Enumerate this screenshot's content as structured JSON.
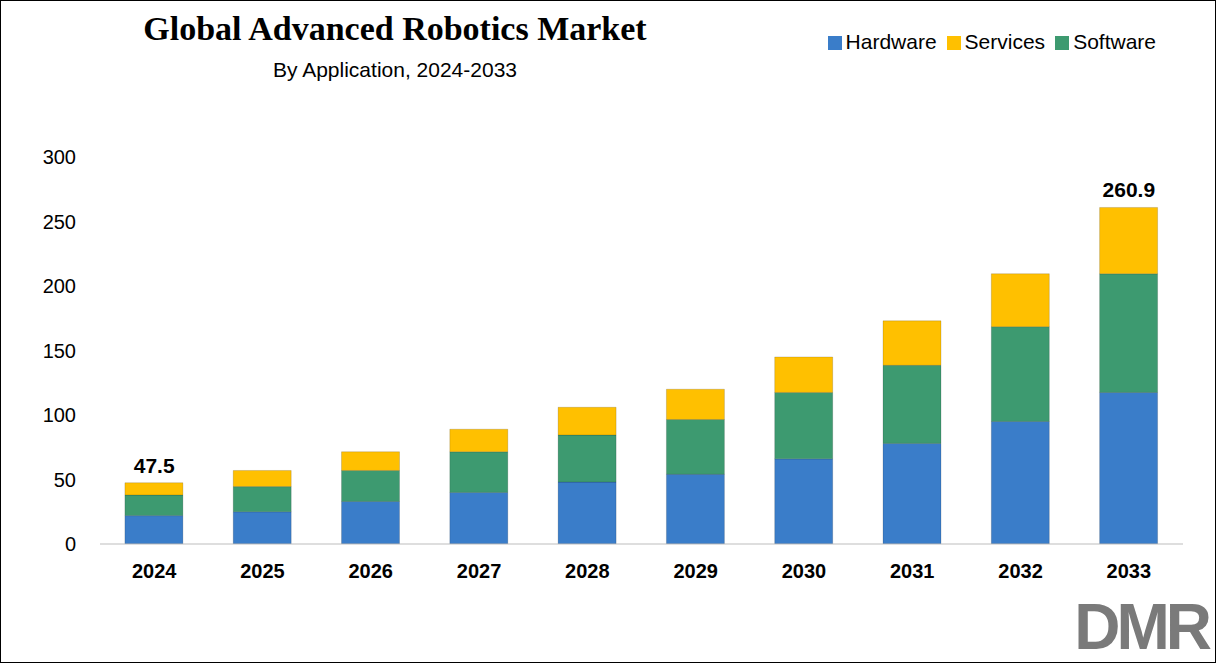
{
  "chart_data": {
    "type": "bar",
    "title": "Global Advanced Robotics Market",
    "subtitle": "By Application, 2024-2033",
    "logo": "DMR",
    "categories": [
      "2024",
      "2025",
      "2026",
      "2027",
      "2028",
      "2029",
      "2030",
      "2031",
      "2032",
      "2033"
    ],
    "series": [
      {
        "name": "Hardware",
        "color": "#3a7dc9",
        "values": [
          22,
          25,
          33,
          40,
          48,
          54,
          66,
          78,
          95,
          117.5
        ]
      },
      {
        "name": "Software",
        "color": "#3d9a70",
        "values": [
          16,
          19.5,
          24,
          31.5,
          36.5,
          42.5,
          51.5,
          60.5,
          73.5,
          92
        ]
      },
      {
        "name": "Services",
        "color": "#ffc000",
        "values": [
          9.5,
          12.5,
          14.5,
          17.5,
          21.5,
          23.5,
          27.5,
          34.5,
          41,
          51.4
        ]
      }
    ],
    "stacked": true,
    "ylim": [
      0,
      300
    ],
    "yticks": [
      0,
      50,
      100,
      150,
      200,
      250,
      300
    ],
    "grid": false,
    "legend": "top-right",
    "annotations": [
      {
        "x": "2024",
        "y": 47.5,
        "text": "47.5"
      },
      {
        "x": "2033",
        "y": 260.9,
        "text": "260.9"
      }
    ]
  }
}
